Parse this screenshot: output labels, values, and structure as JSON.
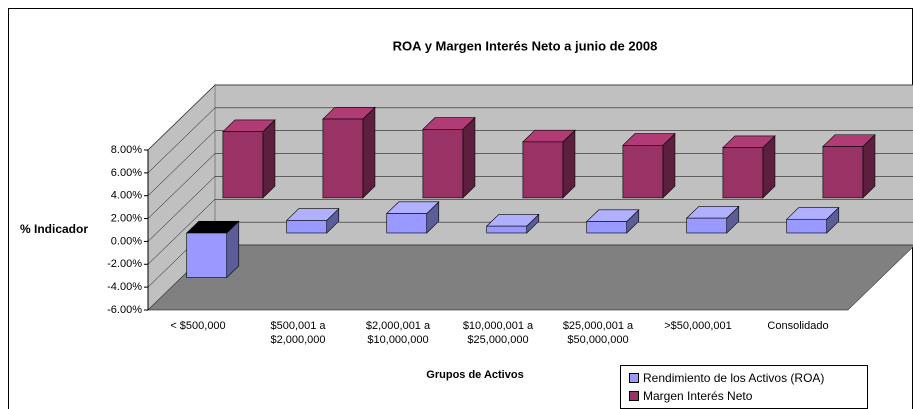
{
  "chart_data": {
    "type": "bar3d",
    "title": "ROA y Margen Interés Neto a junio de 2008",
    "y_label": "% Indicador",
    "x_label": "Grupos de Activos",
    "categories": [
      "< $500,000",
      "$500,001 a $2,000,000",
      "$2,000,001 a $10,000,000",
      "$10,000,001 a $25,000,000",
      "$25,000,001 a $50,000,000",
      ">$50,000,001",
      "Consolidado"
    ],
    "series": [
      {
        "name": "Rendimiento de los Activos (ROA)",
        "color": "#9999ff",
        "values": [
          -3.9,
          1.1,
          1.7,
          0.6,
          1.0,
          1.3,
          1.2
        ]
      },
      {
        "name": "Margen Interés Neto",
        "color": "#993366",
        "values": [
          5.8,
          6.9,
          6.0,
          4.9,
          4.6,
          4.4,
          4.5
        ]
      }
    ],
    "ylim": [
      -6,
      8
    ],
    "yticks": [
      {
        "value": -6,
        "label": "-6.00%"
      },
      {
        "value": -4,
        "label": "-4.00%"
      },
      {
        "value": -2,
        "label": "-2.00%"
      },
      {
        "value": 0,
        "label": "0.00%"
      },
      {
        "value": 2,
        "label": "2.00%"
      },
      {
        "value": 4,
        "label": "4.00%"
      },
      {
        "value": 6,
        "label": "6.00%"
      },
      {
        "value": 8,
        "label": "8.00%"
      }
    ],
    "grid": true,
    "legend": "bottom-right"
  }
}
